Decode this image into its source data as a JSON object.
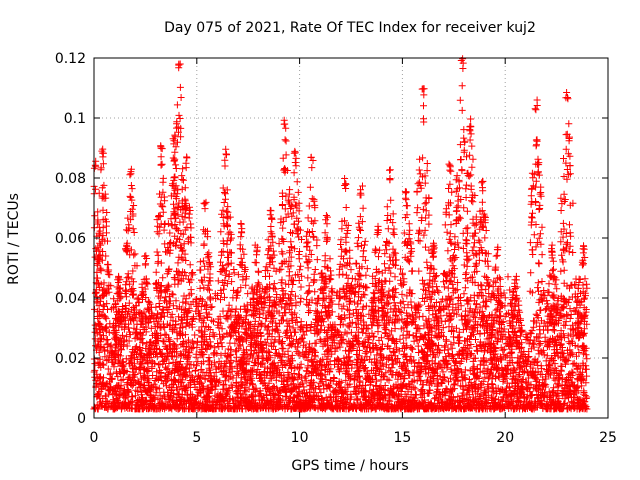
{
  "chart_data": {
    "type": "scatter",
    "title": "Day 075 of 2021, Rate Of TEC Index for receiver kuj2",
    "xlabel": "GPS time / hours",
    "ylabel": "ROTI / TECUs",
    "xlim": [
      0,
      25
    ],
    "ylim": [
      0,
      0.12
    ],
    "xticks": [
      0,
      5,
      10,
      15,
      20,
      25
    ],
    "xtick_labels": [
      "0",
      "5",
      "10",
      "15",
      "20",
      "25"
    ],
    "yticks": [
      0,
      0.02,
      0.04,
      0.06,
      0.08,
      0.1,
      0.12
    ],
    "ytick_labels": [
      "0",
      "0.02",
      "0.04",
      "0.06",
      "0.08",
      "0.1",
      "0.12"
    ],
    "grid": true,
    "marker": "+",
    "series": [
      {
        "name": "ROTI",
        "color": "#ff0000",
        "peaks": [
          {
            "x": 0.05,
            "y": 0.086
          },
          {
            "x": 0.4,
            "y": 0.091
          },
          {
            "x": 1.2,
            "y": 0.048
          },
          {
            "x": 1.8,
            "y": 0.083
          },
          {
            "x": 2.5,
            "y": 0.055
          },
          {
            "x": 3.3,
            "y": 0.091
          },
          {
            "x": 3.9,
            "y": 0.096
          },
          {
            "x": 4.15,
            "y": 0.12
          },
          {
            "x": 4.5,
            "y": 0.087
          },
          {
            "x": 5.4,
            "y": 0.072
          },
          {
            "x": 6.4,
            "y": 0.09
          },
          {
            "x": 7.2,
            "y": 0.065
          },
          {
            "x": 7.9,
            "y": 0.058
          },
          {
            "x": 8.6,
            "y": 0.07
          },
          {
            "x": 9.3,
            "y": 0.1
          },
          {
            "x": 9.8,
            "y": 0.09
          },
          {
            "x": 10.6,
            "y": 0.087
          },
          {
            "x": 11.3,
            "y": 0.068
          },
          {
            "x": 12.2,
            "y": 0.08
          },
          {
            "x": 13.0,
            "y": 0.078
          },
          {
            "x": 13.8,
            "y": 0.065
          },
          {
            "x": 14.4,
            "y": 0.083
          },
          {
            "x": 15.2,
            "y": 0.077
          },
          {
            "x": 16.0,
            "y": 0.111
          },
          {
            "x": 16.5,
            "y": 0.06
          },
          {
            "x": 17.3,
            "y": 0.085
          },
          {
            "x": 17.9,
            "y": 0.12
          },
          {
            "x": 18.3,
            "y": 0.101
          },
          {
            "x": 18.9,
            "y": 0.08
          },
          {
            "x": 19.6,
            "y": 0.057
          },
          {
            "x": 20.5,
            "y": 0.048
          },
          {
            "x": 21.5,
            "y": 0.106
          },
          {
            "x": 22.3,
            "y": 0.058
          },
          {
            "x": 23.0,
            "y": 0.11
          },
          {
            "x": 23.8,
            "y": 0.06
          }
        ]
      }
    ]
  }
}
